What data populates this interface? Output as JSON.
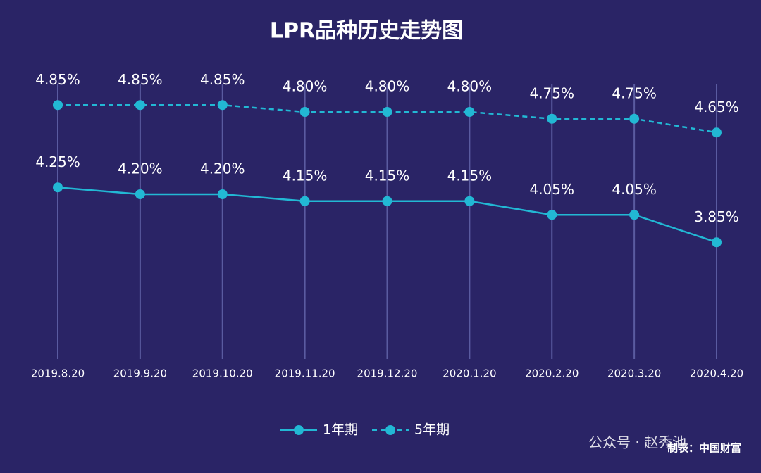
{
  "chart_data": {
    "type": "line",
    "title": "LPR品种历史走势图",
    "categories": [
      "2019.8.20",
      "2019.9.20",
      "2019.10.20",
      "2019.11.20",
      "2019.12.20",
      "2020.1.20",
      "2020.2.20",
      "2020.3.20",
      "2020.4.20"
    ],
    "series": [
      {
        "name": "1年期",
        "color": "#22b8d4",
        "dash": false,
        "values": [
          4.25,
          4.2,
          4.2,
          4.15,
          4.15,
          4.15,
          4.05,
          4.05,
          3.85
        ],
        "value_labels": [
          "4.25%",
          "4.20%",
          "4.20%",
          "4.15%",
          "4.15%",
          "4.15%",
          "4.05%",
          "4.05%",
          "3.85%"
        ]
      },
      {
        "name": "5年期",
        "color": "#22b8d4",
        "dash": true,
        "values": [
          4.85,
          4.85,
          4.85,
          4.8,
          4.8,
          4.8,
          4.75,
          4.75,
          4.65
        ],
        "value_labels": [
          "4.85%",
          "4.85%",
          "4.85%",
          "4.80%",
          "4.80%",
          "4.80%",
          "4.75%",
          "4.75%",
          "4.65%"
        ]
      }
    ],
    "ylim": [
      3,
      5
    ],
    "grid": true,
    "legend": "bottom",
    "watermark": "公众号 · 赵秀池",
    "source": "制表：中国财富"
  }
}
